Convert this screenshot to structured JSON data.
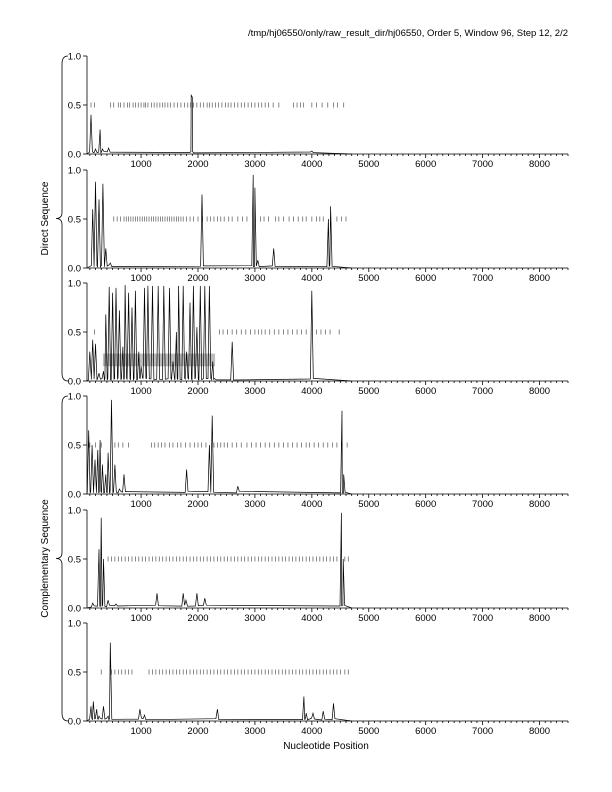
{
  "header": "/tmp/hj06550/only/raw_result_dir/hj06550, Order 5, Window 96, Step 12, 2/2",
  "chart_data": {
    "type": "line",
    "xlabel": "Nucleotide Position",
    "xlim": [
      50,
      8500
    ],
    "ylim": [
      0,
      1.0
    ],
    "x_ticks": [
      1000,
      2000,
      3000,
      4000,
      5000,
      6000,
      7000,
      8000
    ],
    "y_ticks": [
      "0.0",
      "0.5",
      "1.0"
    ],
    "groups": [
      {
        "label": "Direct Sequence",
        "panels": [
          0,
          1,
          2
        ]
      },
      {
        "label": "Complementary Sequence",
        "panels": [
          3,
          4,
          5
        ]
      }
    ],
    "panels": [
      {
        "peaks": [
          [
            120,
            0.4
          ],
          [
            200,
            0.05
          ],
          [
            280,
            0.25
          ],
          [
            320,
            0.05
          ],
          [
            430,
            0.06
          ],
          [
            1880,
            0.6
          ],
          [
            1900,
            0.58
          ],
          [
            4000,
            0.03
          ]
        ],
        "hits_y": 0.5,
        "hits": [
          120,
          180,
          460,
          520,
          600,
          640,
          700,
          760,
          800,
          860,
          900,
          950,
          1000,
          1050,
          1080,
          1120,
          1180,
          1230,
          1280,
          1330,
          1380,
          1420,
          1470,
          1520,
          1580,
          1640,
          1700,
          1760,
          1820,
          1870,
          1920,
          1980,
          2040,
          2100,
          2160,
          2200,
          2250,
          2310,
          2360,
          2420,
          2480,
          2530,
          2580,
          2640,
          2700,
          2760,
          2820,
          2880,
          2940,
          3000,
          3060,
          3120,
          3180,
          3240,
          3320,
          3420,
          3680,
          3740,
          3800,
          3850,
          4000,
          4080,
          4180,
          4280,
          4380,
          4450,
          4560
        ]
      },
      {
        "peaks": [
          [
            150,
            0.6
          ],
          [
            200,
            0.88
          ],
          [
            260,
            0.7
          ],
          [
            330,
            0.86
          ],
          [
            380,
            0.2
          ],
          [
            460,
            0.05
          ],
          [
            2070,
            0.75
          ],
          [
            2970,
            0.95
          ],
          [
            3000,
            0.82
          ],
          [
            3050,
            0.08
          ],
          [
            3330,
            0.2
          ],
          [
            4290,
            0.5
          ],
          [
            4330,
            0.63
          ]
        ],
        "hits_y": 0.5,
        "hits": [
          520,
          580,
          640,
          700,
          740,
          780,
          820,
          860,
          900,
          940,
          980,
          1020,
          1060,
          1100,
          1140,
          1180,
          1220,
          1260,
          1300,
          1340,
          1380,
          1420,
          1460,
          1500,
          1540,
          1580,
          1620,
          1660,
          1700,
          1740,
          1800,
          1860,
          1920,
          2000,
          2080,
          2160,
          2220,
          2280,
          2340,
          2400,
          2460,
          2540,
          2600,
          2700,
          2780,
          2860,
          3100,
          3160,
          3240,
          3360,
          3420,
          3500,
          3600,
          3680,
          3760,
          3840,
          3900,
          4000,
          4080,
          4140,
          4200,
          4440,
          4520,
          4600
        ]
      },
      {
        "peaks": [
          [
            100,
            0.3
          ],
          [
            150,
            0.42
          ],
          [
            200,
            0.38
          ],
          [
            260,
            0.08
          ],
          [
            340,
            0.1
          ],
          [
            380,
            0.68
          ],
          [
            440,
            0.96
          ],
          [
            500,
            0.9
          ],
          [
            560,
            0.95
          ],
          [
            620,
            0.72
          ],
          [
            680,
            0.35
          ],
          [
            720,
            0.98
          ],
          [
            780,
            0.9
          ],
          [
            840,
            0.75
          ],
          [
            900,
            0.92
          ],
          [
            960,
            0.3
          ],
          [
            1000,
            0.15
          ],
          [
            1060,
            0.95
          ],
          [
            1120,
            0.97
          ],
          [
            1200,
            0.97
          ],
          [
            1300,
            0.97
          ],
          [
            1400,
            0.97
          ],
          [
            1500,
            0.95
          ],
          [
            1560,
            0.2
          ],
          [
            1620,
            0.5
          ],
          [
            1660,
            0.97
          ],
          [
            1740,
            0.97
          ],
          [
            1800,
            0.3
          ],
          [
            1860,
            0.8
          ],
          [
            1920,
            0.97
          ],
          [
            1980,
            0.55
          ],
          [
            2040,
            0.97
          ],
          [
            2120,
            0.97
          ],
          [
            2200,
            0.97
          ],
          [
            2260,
            0.2
          ],
          [
            2300,
            0.02
          ],
          [
            2600,
            0.4
          ],
          [
            4000,
            0.92
          ]
        ],
        "hits_y": 0.5,
        "hits": [
          180,
          2380,
          2440,
          2520,
          2600,
          2680,
          2760,
          2840,
          2920,
          3000,
          3060,
          3120,
          3180,
          3260,
          3340,
          3420,
          3500,
          3580,
          3660,
          3740,
          3820,
          3900,
          4080,
          4160,
          4240,
          4320,
          4480
        ],
        "shaded_band": {
          "x": [
            330,
            2300
          ],
          "y": [
            0.15,
            0.28
          ]
        }
      },
      {
        "peaks": [
          [
            80,
            0.65
          ],
          [
            140,
            0.5
          ],
          [
            190,
            0.35
          ],
          [
            240,
            0.45
          ],
          [
            280,
            0.55
          ],
          [
            320,
            0.3
          ],
          [
            380,
            0.2
          ],
          [
            420,
            0.42
          ],
          [
            480,
            0.96
          ],
          [
            540,
            0.3
          ],
          [
            620,
            0.05
          ],
          [
            700,
            0.2
          ],
          [
            1800,
            0.25
          ],
          [
            2200,
            0.5
          ],
          [
            2250,
            0.8
          ],
          [
            2700,
            0.08
          ],
          [
            4530,
            0.85
          ],
          [
            4560,
            0.2
          ]
        ],
        "hits_y": 0.5,
        "hits": [
          100,
          200,
          300,
          540,
          600,
          680,
          780,
          1180,
          1240,
          1300,
          1360,
          1420,
          1500,
          1560,
          1640,
          1700,
          1780,
          1860,
          1940,
          2000,
          2060,
          2140,
          2280,
          2340,
          2400,
          2460,
          2520,
          2600,
          2680,
          2760,
          2860,
          2940,
          3020,
          3100,
          3180,
          3260,
          3340,
          3420,
          3500,
          3580,
          3660,
          3740,
          3820,
          3900,
          3960,
          4040,
          4120,
          4200,
          4280,
          4360,
          4440,
          4520,
          4620
        ]
      },
      {
        "peaks": [
          [
            150,
            0.05
          ],
          [
            260,
            0.6
          ],
          [
            300,
            0.92
          ],
          [
            340,
            0.5
          ],
          [
            420,
            0.08
          ],
          [
            560,
            0.04
          ],
          [
            1280,
            0.15
          ],
          [
            1740,
            0.15
          ],
          [
            1790,
            0.08
          ],
          [
            1980,
            0.15
          ],
          [
            2120,
            0.1
          ],
          [
            4520,
            0.97
          ],
          [
            4550,
            0.5
          ]
        ],
        "hits_y": 0.5,
        "hits": [
          420,
          480,
          540,
          600,
          660,
          720,
          780,
          840,
          900,
          960,
          1020,
          1080,
          1140,
          1200,
          1260,
          1320,
          1380,
          1440,
          1500,
          1560,
          1620,
          1680,
          1740,
          1800,
          1860,
          1920,
          1980,
          2040,
          2100,
          2160,
          2220,
          2280,
          2340,
          2400,
          2460,
          2520,
          2580,
          2640,
          2700,
          2760,
          2820,
          2880,
          2940,
          3000,
          3060,
          3120,
          3180,
          3240,
          3300,
          3360,
          3420,
          3480,
          3540,
          3600,
          3660,
          3720,
          3780,
          3840,
          3900,
          3960,
          4020,
          4080,
          4140,
          4200,
          4260,
          4320,
          4380,
          4440,
          4580,
          4640
        ]
      },
      {
        "peaks": [
          [
            120,
            0.15
          ],
          [
            160,
            0.2
          ],
          [
            220,
            0.12
          ],
          [
            260,
            0.05
          ],
          [
            340,
            0.15
          ],
          [
            420,
            0.05
          ],
          [
            460,
            0.8
          ],
          [
            980,
            0.12
          ],
          [
            1060,
            0.06
          ],
          [
            2340,
            0.12
          ],
          [
            3860,
            0.25
          ],
          [
            3900,
            0.08
          ],
          [
            4020,
            0.08
          ],
          [
            4200,
            0.1
          ],
          [
            4380,
            0.18
          ]
        ],
        "hits_y": 0.5,
        "hits": [
          300,
          480,
          540,
          600,
          660,
          720,
          780,
          840,
          1140,
          1200,
          1260,
          1320,
          1380,
          1440,
          1500,
          1560,
          1620,
          1680,
          1740,
          1800,
          1860,
          1920,
          1980,
          2040,
          2100,
          2160,
          2220,
          2280,
          2340,
          2400,
          2460,
          2520,
          2580,
          2640,
          2700,
          2760,
          2820,
          2880,
          2940,
          3000,
          3060,
          3120,
          3180,
          3240,
          3300,
          3360,
          3420,
          3480,
          3540,
          3600,
          3660,
          3720,
          3780,
          3840,
          3900,
          3960,
          4020,
          4080,
          4140,
          4200,
          4260,
          4320,
          4380,
          4440,
          4500,
          4580,
          4640
        ]
      }
    ]
  }
}
